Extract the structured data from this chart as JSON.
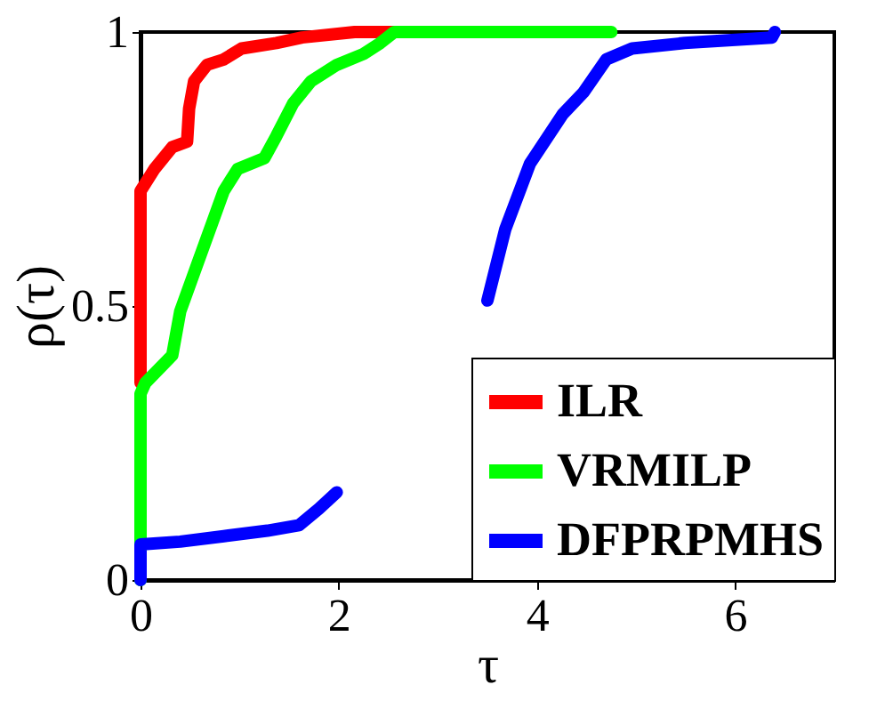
{
  "chart_data": {
    "type": "line",
    "xlabel": "τ",
    "ylabel": "ρ(τ)",
    "xlim": [
      0,
      7
    ],
    "ylim": [
      0,
      1
    ],
    "xticks": [
      0,
      2,
      4,
      6
    ],
    "yticks": [
      0,
      0.5,
      1
    ],
    "grid": false,
    "legend": "bottom right",
    "series": [
      {
        "name": "ILR",
        "color": "#ff0000",
        "x": [
          0,
          0,
          0.14,
          0.32,
          0.47,
          0.49,
          0.54,
          0.67,
          0.84,
          1.02,
          1.37,
          1.63,
          2.16,
          2.6
        ],
        "values": [
          0.36,
          0.71,
          0.75,
          0.79,
          0.8,
          0.86,
          0.91,
          0.94,
          0.95,
          0.97,
          0.98,
          0.99,
          1.0,
          1.0
        ]
      },
      {
        "name": "VRMILP",
        "color": "#00ff00",
        "x": [
          0,
          0,
          0.05,
          0.32,
          0.4,
          0.58,
          0.72,
          0.84,
          0.98,
          1.25,
          1.37,
          1.54,
          1.72,
          1.98,
          2.25,
          2.42,
          2.56,
          4.75
        ],
        "values": [
          0.0,
          0.34,
          0.36,
          0.41,
          0.49,
          0.58,
          0.65,
          0.71,
          0.75,
          0.77,
          0.81,
          0.87,
          0.91,
          0.94,
          0.96,
          0.98,
          1.0,
          1.0
        ]
      },
      {
        "name": "DFPRPMHS",
        "color": "#0000ff",
        "x": [
          0,
          0,
          0.4,
          0.84,
          1.28,
          1.6,
          1.8,
          1.98,
          2.7,
          3.5,
          3.68,
          3.93,
          4.26,
          4.47,
          4.7,
          4.96,
          5.49,
          6.37,
          6.4
        ],
        "values": [
          0.0,
          0.065,
          0.07,
          0.08,
          0.09,
          0.1,
          0.13,
          0.16,
          null,
          0.51,
          0.64,
          0.76,
          0.85,
          0.89,
          0.95,
          0.97,
          0.98,
          0.99,
          1.0
        ]
      }
    ]
  }
}
